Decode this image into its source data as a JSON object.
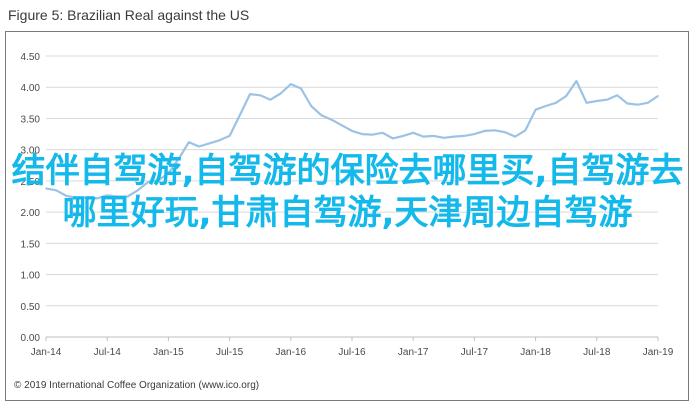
{
  "figure_title": "Figure 5: Brazilian Real against the US",
  "overlay_text": "结伴自驾游,自驾游的保险去哪里买,自驾游去哪里好玩,甘肃自驾游,天津周边自驾游",
  "copyright": "© 2019 International Coffee Organization (www.ico.org)",
  "colors": {
    "line": "#9cc2e6",
    "grid": "#d9d9d9",
    "axis_text": "#4a4a4a",
    "overlay": "#13b9ea"
  },
  "chart_data": {
    "type": "line",
    "title": "Figure 5: Brazilian Real against the US",
    "xlabel": "",
    "ylabel": "",
    "ylim": [
      0.0,
      4.5
    ],
    "yticks": [
      "0.00",
      "0.50",
      "1.00",
      "1.50",
      "2.00",
      "2.50",
      "3.00",
      "3.50",
      "4.00",
      "4.50"
    ],
    "xticks": [
      "Jan-14",
      "Jul-14",
      "Jan-15",
      "Jul-15",
      "Jan-16",
      "Jul-16",
      "Jan-17",
      "Jul-17",
      "Jan-18",
      "Jul-18",
      "Jan-19"
    ],
    "grid": true,
    "legend": "none",
    "series": [
      {
        "values": [
          2.38,
          2.35,
          2.26,
          2.23,
          2.23,
          2.22,
          2.27,
          2.25,
          2.25,
          2.35,
          2.48,
          2.51,
          2.62,
          2.85,
          3.12,
          3.05,
          3.1,
          3.15,
          3.22,
          3.55,
          3.89,
          3.87,
          3.8,
          3.9,
          4.05,
          3.98,
          3.7,
          3.55,
          3.48,
          3.39,
          3.3,
          3.25,
          3.24,
          3.27,
          3.18,
          3.22,
          3.27,
          3.21,
          3.22,
          3.19,
          3.21,
          3.22,
          3.25,
          3.3,
          3.31,
          3.28,
          3.21,
          3.31,
          3.64,
          3.7,
          3.75,
          3.86,
          4.1,
          3.75,
          3.78,
          3.8,
          3.87,
          3.74,
          3.72,
          3.75,
          3.86
        ]
      }
    ]
  }
}
